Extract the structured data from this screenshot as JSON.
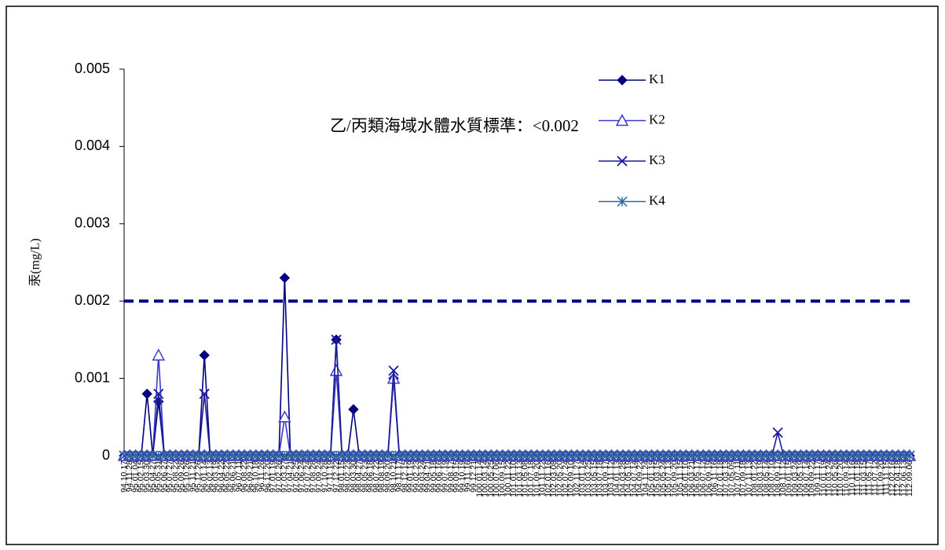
{
  "chart_data": {
    "type": "line",
    "annotation": "乙/丙類海域水體水質標準：<0.002",
    "threshold": 0.002,
    "ylabel": "汞(mg/L)",
    "ylim": [
      0,
      0.005
    ],
    "yticks": [
      0,
      0.001,
      0.002,
      0.003,
      0.004,
      0.005
    ],
    "categories": [
      "94.10.17",
      "94.11.28",
      "95.01.04",
      "95.02.15",
      "95.03.30",
      "95.04.27",
      "95.05.31",
      "95.06.27",
      "95.07.27",
      "95.08.22",
      "95.09.26",
      "95.10.26",
      "95.11.21",
      "95.12.26",
      "96.01.14",
      "96.02.13",
      "96.03.19",
      "96.04.22",
      "96.05.22",
      "96.06.21",
      "96.07.11",
      "96.08.22",
      "96.09.21",
      "96.10.18",
      "96.11.26",
      "96.12.20",
      "97.01.19",
      "97.02.26",
      "97.03.27",
      "97.04.21",
      "97.05.25",
      "97.06.24",
      "97.07.24",
      "97.08.28",
      "97.09.24",
      "97.10.28",
      "97.11.19",
      "97.12.22",
      "98.01.15",
      "98.02.23",
      "98.03.30",
      "98.04.27",
      "98.05.23",
      "98.06.18",
      "98.07.22",
      "98.08.19",
      "98.09.20",
      "98.10.21",
      "98.11.17",
      "98.12.15",
      "99.01.19",
      "99.02.23",
      "99.03.24",
      "99.04.21",
      "99.05.18",
      "99.06.16",
      "99.07.19",
      "99.08.17",
      "99.09.15",
      "99.10.19",
      "99.11.16",
      "99.12.21",
      "100.01.14",
      "100.03.14",
      "100.05.25",
      "100.07.06",
      "100.09.15",
      "100.11.22",
      "101.01.10",
      "101.03.13",
      "101.05.08",
      "101.07.18",
      "101.09.20",
      "101.11.22",
      "102.01.16",
      "102.03.08",
      "102.05.20",
      "102.07.24",
      "102.09.10",
      "102.11.27",
      "103.01.14",
      "103.03.25",
      "103.05.15",
      "103.07.18",
      "103.09.17",
      "103.11.12",
      "104.01.13",
      "104.03.28",
      "104.05.19",
      "104.07.14",
      "104.09.22",
      "104.11.24",
      "105.01.19",
      "105.03.15",
      "105.05.24",
      "105.07.13",
      "105.09.20",
      "105.11.15",
      "106.01.10",
      "106.03.21",
      "106.05.17",
      "106.07.12",
      "106.09.19",
      "106.11.16",
      "107.01.18",
      "107.03.13",
      "107.05.09",
      "107.07.11",
      "107.09.18",
      "107.11.13",
      "108.01.22",
      "108.03.19",
      "108.05.14",
      "108.07.10",
      "108.09.17",
      "108.11.12",
      "109.01.15",
      "109.03.24",
      "109.05.19",
      "109.07.14",
      "109.09.22",
      "109.11.17",
      "110.01.19",
      "110.03.24",
      "110.05.26",
      "110.07.20",
      "110.09.14",
      "110.11.16",
      "111.01.18",
      "111.03.15",
      "111.05.17",
      "111.07.12",
      "111.09.20",
      "111.11.15",
      "112.02.16",
      "112.04.18",
      "112.06.13",
      "112.09.06"
    ],
    "series": [
      {
        "name": "K1",
        "color": "#000080",
        "marker": "diamond",
        "values": [
          0,
          0,
          0,
          0,
          0.0008,
          0,
          0.0007,
          0,
          0,
          0,
          0,
          0,
          0,
          0,
          0.0013,
          0,
          0,
          0,
          0,
          0,
          0,
          0,
          0,
          0,
          0,
          0,
          0,
          0,
          0.0023,
          0,
          0,
          0,
          0,
          0,
          0,
          0,
          0,
          0.0015,
          0,
          0,
          0.0006,
          0,
          0,
          0,
          0,
          0,
          0,
          0.001,
          0,
          0,
          0,
          0,
          0,
          0,
          0,
          0,
          0,
          0,
          0,
          0,
          0,
          0,
          0,
          0,
          0,
          0,
          0,
          0,
          0,
          0,
          0,
          0,
          0,
          0,
          0,
          0,
          0,
          0,
          0,
          0,
          0,
          0,
          0,
          0,
          0,
          0,
          0,
          0,
          0,
          0,
          0,
          0,
          0,
          0,
          0,
          0,
          0,
          0,
          0,
          0,
          0,
          0,
          0,
          0,
          0,
          0,
          0,
          0,
          0,
          0,
          0,
          0,
          0,
          0,
          0,
          0,
          0,
          0,
          0,
          0,
          0,
          0,
          0,
          0,
          0,
          0,
          0,
          0,
          0,
          0,
          0,
          0,
          0,
          0,
          0,
          0,
          0,
          0
        ]
      },
      {
        "name": "K2",
        "color": "#3a3acc",
        "marker": "triangle",
        "values": [
          0,
          0,
          0,
          0,
          0,
          0,
          0.0013,
          0,
          0,
          0,
          0,
          0,
          0,
          0,
          0,
          0,
          0,
          0,
          0,
          0,
          0,
          0,
          0,
          0,
          0,
          0,
          0,
          0,
          0.0005,
          0,
          0,
          0,
          0,
          0,
          0,
          0,
          0,
          0.0011,
          0,
          0,
          0,
          0,
          0,
          0,
          0,
          0,
          0,
          0.001,
          0,
          0,
          0,
          0,
          0,
          0,
          0,
          0,
          0,
          0,
          0,
          0,
          0,
          0,
          0,
          0,
          0,
          0,
          0,
          0,
          0,
          0,
          0,
          0,
          0,
          0,
          0,
          0,
          0,
          0,
          0,
          0,
          0,
          0,
          0,
          0,
          0,
          0,
          0,
          0,
          0,
          0,
          0,
          0,
          0,
          0,
          0,
          0,
          0,
          0,
          0,
          0,
          0,
          0,
          0,
          0,
          0,
          0,
          0,
          0,
          0,
          0,
          0,
          0,
          0,
          0,
          0,
          0,
          0,
          0,
          0,
          0,
          0,
          0,
          0,
          0,
          0,
          0,
          0,
          0,
          0,
          0,
          0,
          0,
          0,
          0,
          0,
          0,
          0,
          0
        ]
      },
      {
        "name": "K3",
        "color": "#1a1a99",
        "marker": "x",
        "values": [
          0,
          0,
          0,
          0,
          0,
          0,
          0.0008,
          0,
          0,
          0,
          0,
          0,
          0,
          0,
          0.0008,
          0,
          0,
          0,
          0,
          0,
          0,
          0,
          0,
          0,
          0,
          0,
          0,
          0,
          0,
          0,
          0,
          0,
          0,
          0,
          0,
          0,
          0,
          0.0015,
          0,
          0,
          0,
          0,
          0,
          0,
          0,
          0,
          0,
          0.0011,
          0,
          0,
          0,
          0,
          0,
          0,
          0,
          0,
          0,
          0,
          0,
          0,
          0,
          0,
          0,
          0,
          0,
          0,
          0,
          0,
          0,
          0,
          0,
          0,
          0,
          0,
          0,
          0,
          0,
          0,
          0,
          0,
          0,
          0,
          0,
          0,
          0,
          0,
          0,
          0,
          0,
          0,
          0,
          0,
          0,
          0,
          0,
          0,
          0,
          0,
          0,
          0,
          0,
          0,
          0,
          0,
          0,
          0,
          0,
          0,
          0,
          0,
          0,
          0,
          0,
          0,
          0.0003,
          0,
          0,
          0,
          0,
          0,
          0,
          0,
          0,
          0,
          0,
          0,
          0,
          0,
          0,
          0,
          0,
          0,
          0,
          0,
          0,
          0,
          0,
          0
        ]
      },
      {
        "name": "K4",
        "color": "#336699",
        "marker": "asterisk",
        "values": [
          0,
          0,
          0,
          0,
          0,
          0,
          0,
          0,
          0,
          0,
          0,
          0,
          0,
          0,
          0,
          0,
          0,
          0,
          0,
          0,
          0,
          0,
          0,
          0,
          0,
          0,
          0,
          0,
          0,
          0,
          0,
          0,
          0,
          0,
          0,
          0,
          0,
          0,
          0,
          0,
          0,
          0,
          0,
          0,
          0,
          0,
          0,
          0,
          0,
          0,
          0,
          0,
          0,
          0,
          0,
          0,
          0,
          0,
          0,
          0,
          0,
          0,
          0,
          0,
          0,
          0,
          0,
          0,
          0,
          0,
          0,
          0,
          0,
          0,
          0,
          0,
          0,
          0,
          0,
          0,
          0,
          0,
          0,
          0,
          0,
          0,
          0,
          0,
          0,
          0,
          0,
          0,
          0,
          0,
          0,
          0,
          0,
          0,
          0,
          0,
          0,
          0,
          0,
          0,
          0,
          0,
          0,
          0,
          0,
          0,
          0,
          0,
          0,
          0,
          0,
          0,
          0,
          0,
          0,
          0,
          0,
          0,
          0,
          0,
          0,
          0,
          0,
          0,
          0,
          0,
          0,
          0,
          0,
          0,
          0,
          0,
          0,
          0
        ]
      }
    ]
  }
}
